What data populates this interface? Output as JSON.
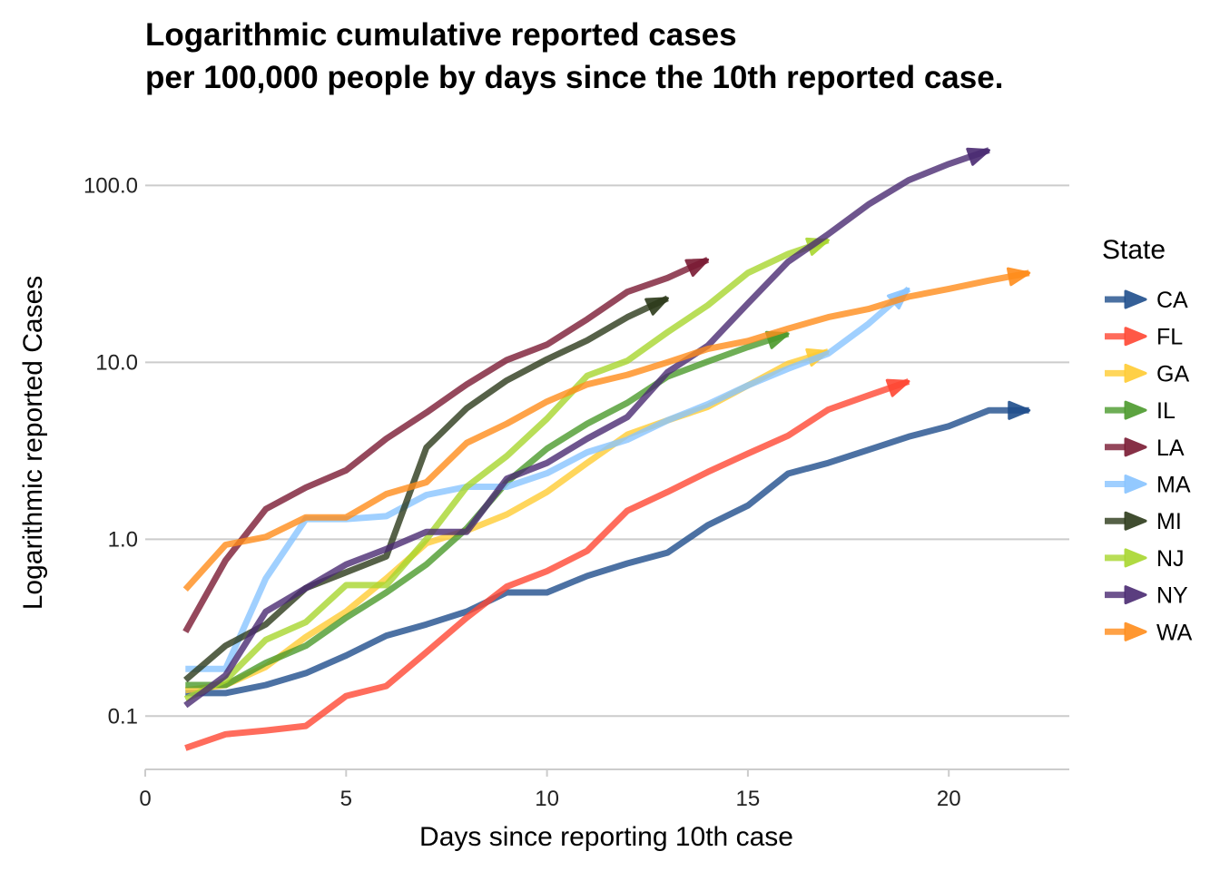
{
  "chart_data": {
    "type": "line",
    "title_lines": [
      "Logarithmic cumulative reported cases",
      "per 100,000 people by days since the 10th reported case."
    ],
    "xlabel": "Days since reporting 10th case",
    "ylabel": "Logarithmic reported Cases",
    "x_ticks": [
      0,
      5,
      10,
      15,
      20
    ],
    "x_tick_labels": [
      "0",
      "5",
      "10",
      "15",
      "20"
    ],
    "xlim": [
      0,
      23
    ],
    "y_scale": "log",
    "y_ticks": [
      0.1,
      1,
      10,
      100
    ],
    "y_tick_labels": [
      "0.1",
      "1.0",
      "10.0",
      "100.0"
    ],
    "ylim": [
      0.05,
      190
    ],
    "grid": "horizontal major",
    "legend_title": "State",
    "legend_position": "right",
    "line_end": "arrow",
    "series": [
      {
        "name": "CA",
        "color": "#1F4E8C",
        "x": [
          1,
          2,
          3,
          4,
          5,
          6,
          7,
          8,
          9,
          10,
          11,
          12,
          13,
          14,
          15,
          16,
          17,
          18,
          19,
          20,
          21,
          22
        ],
        "y": [
          0.135,
          0.135,
          0.15,
          0.175,
          0.22,
          0.285,
          0.33,
          0.39,
          0.5,
          0.5,
          0.62,
          0.73,
          0.84,
          1.2,
          1.55,
          2.35,
          2.7,
          3.2,
          3.8,
          4.35,
          5.35,
          5.35
        ]
      },
      {
        "name": "FL",
        "color": "#FF4733",
        "x": [
          1,
          2,
          3,
          4,
          5,
          6,
          7,
          8,
          9,
          10,
          11,
          12,
          13,
          14,
          15,
          16,
          17,
          18,
          19
        ],
        "y": [
          0.066,
          0.079,
          0.083,
          0.088,
          0.13,
          0.148,
          0.23,
          0.36,
          0.54,
          0.66,
          0.86,
          1.45,
          1.85,
          2.4,
          3.05,
          3.85,
          5.4,
          6.5,
          7.8
        ]
      },
      {
        "name": "GA",
        "color": "#FFCC33",
        "x": [
          1,
          2,
          3,
          4,
          5,
          6,
          7,
          8,
          9,
          10,
          11,
          12,
          13,
          14,
          15,
          16,
          17
        ],
        "y": [
          0.14,
          0.15,
          0.19,
          0.28,
          0.39,
          0.6,
          0.95,
          1.12,
          1.38,
          1.85,
          2.7,
          3.9,
          4.7,
          5.6,
          7.4,
          9.8,
          11.5
        ]
      },
      {
        "name": "IL",
        "color": "#4B9A2C",
        "x": [
          1,
          2,
          3,
          4,
          5,
          6,
          7,
          8,
          9,
          10,
          11,
          12,
          13,
          14,
          15,
          16
        ],
        "y": [
          0.15,
          0.15,
          0.2,
          0.25,
          0.36,
          0.5,
          0.72,
          1.15,
          2.1,
          3.25,
          4.5,
          5.9,
          8.3,
          10.1,
          12.2,
          14.5
        ]
      },
      {
        "name": "LA",
        "color": "#7A1A33",
        "x": [
          1,
          2,
          3,
          4,
          5,
          6,
          7,
          8,
          9,
          10,
          11,
          12,
          13,
          14
        ],
        "y": [
          0.3,
          0.76,
          1.48,
          1.96,
          2.45,
          3.7,
          5.2,
          7.5,
          10.3,
          12.6,
          17.5,
          25,
          30,
          38
        ]
      },
      {
        "name": "MA",
        "color": "#88C4FF",
        "x": [
          1,
          2,
          3,
          4,
          5,
          6,
          7,
          8,
          9,
          10,
          11,
          12,
          13,
          14,
          15,
          16,
          17,
          18,
          19
        ],
        "y": [
          0.185,
          0.185,
          0.6,
          1.3,
          1.3,
          1.35,
          1.78,
          1.98,
          1.98,
          2.36,
          3.1,
          3.65,
          4.7,
          5.8,
          7.4,
          9.2,
          11.2,
          16.5,
          26
        ]
      },
      {
        "name": "MI",
        "color": "#2C3A1A",
        "x": [
          1,
          2,
          3,
          4,
          5,
          6,
          7,
          8,
          9,
          10,
          11,
          12,
          13
        ],
        "y": [
          0.16,
          0.25,
          0.33,
          0.53,
          0.65,
          0.8,
          3.3,
          5.5,
          7.9,
          10.4,
          13.3,
          18,
          23
        ]
      },
      {
        "name": "NJ",
        "color": "#A8D62E",
        "x": [
          1,
          2,
          3,
          4,
          5,
          6,
          7,
          8,
          9,
          10,
          11,
          12,
          13,
          14,
          15,
          16,
          17
        ],
        "y": [
          0.125,
          0.16,
          0.27,
          0.34,
          0.55,
          0.55,
          1.0,
          1.98,
          2.95,
          4.8,
          8.4,
          10.2,
          14.8,
          21,
          32,
          41,
          49
        ]
      },
      {
        "name": "NY",
        "color": "#4A2A72",
        "x": [
          1,
          2,
          3,
          4,
          5,
          6,
          7,
          8,
          9,
          10,
          11,
          12,
          13,
          14,
          15,
          16,
          17,
          18,
          19,
          20,
          21
        ],
        "y": [
          0.115,
          0.17,
          0.39,
          0.53,
          0.72,
          0.88,
          1.1,
          1.1,
          2.2,
          2.7,
          3.7,
          4.9,
          8.8,
          12.4,
          21.5,
          37,
          53,
          78,
          107,
          132,
          158
        ]
      },
      {
        "name": "WA",
        "color": "#FF8C1A",
        "x": [
          1,
          2,
          3,
          4,
          5,
          6,
          7,
          8,
          9,
          10,
          11,
          12,
          13,
          14,
          15,
          16,
          17,
          18,
          19,
          20,
          21,
          22
        ],
        "y": [
          0.52,
          0.93,
          1.03,
          1.33,
          1.33,
          1.8,
          2.1,
          3.5,
          4.5,
          6.0,
          7.5,
          8.5,
          10,
          11.9,
          13.2,
          15.5,
          18,
          20,
          23.5,
          26,
          29,
          32
        ]
      }
    ]
  }
}
